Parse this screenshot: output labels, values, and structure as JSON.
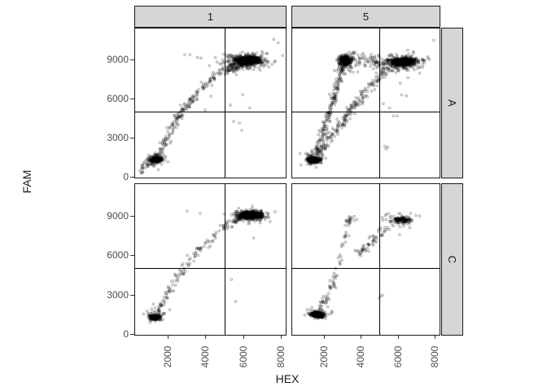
{
  "chart_data": {
    "type": "scatter",
    "xlabel": "HEX",
    "ylabel": "FAM",
    "x_domain": [
      230,
      8300
    ],
    "y_domain": [
      -100,
      11450
    ],
    "x_ticks": [
      {
        "value": 2000,
        "label": "2000"
      },
      {
        "value": 4000,
        "label": "4000"
      },
      {
        "value": 6000,
        "label": "6000"
      },
      {
        "value": 8000,
        "label": "8000"
      }
    ],
    "y_ticks": [
      {
        "value": 0,
        "label": "0"
      },
      {
        "value": 3000,
        "label": "3000"
      },
      {
        "value": 6000,
        "label": "6000"
      },
      {
        "value": 9000,
        "label": "9000"
      }
    ],
    "thresholds": {
      "x": 5000,
      "y": 5000
    },
    "grid": "off",
    "legend": "none",
    "facets": {
      "col_labels": [
        "1",
        "5"
      ],
      "row_labels": [
        "A",
        "C"
      ]
    },
    "point_style": {
      "radius": 1.4,
      "stroke": "rgba(0,0,0,0.30)",
      "fill": "rgba(0,0,0,0.07)"
    },
    "panels": [
      {
        "id": "col1-rowA",
        "col": "1",
        "row": "A",
        "clusters": [
          {
            "cx": 1390,
            "cy": 1330,
            "sx": 130,
            "sy": 85,
            "n": 320
          },
          {
            "cx": 1420,
            "cy": 1430,
            "sx": 300,
            "sy": 260,
            "n": 70
          },
          {
            "cx": 6280,
            "cy": 8950,
            "sx": 320,
            "sy": 150,
            "n": 650
          },
          {
            "cx": 6150,
            "cy": 8900,
            "sx": 620,
            "sy": 300,
            "n": 220
          }
        ],
        "trails": [
          {
            "path": [
              [
                560,
                560
              ],
              [
                1100,
                1050
              ],
              [
                1500,
                1600
              ],
              [
                1900,
                2700
              ],
              [
                2300,
                3900
              ],
              [
                2700,
                4900
              ],
              [
                3100,
                5700
              ],
              [
                3600,
                6500
              ],
              [
                4100,
                7200
              ],
              [
                4600,
                7800
              ],
              [
                5100,
                8300
              ],
              [
                5600,
                8600
              ]
            ],
            "n": 240,
            "jx": 100,
            "jy": 170
          },
          {
            "path": [
              [
                5300,
                8200
              ],
              [
                5950,
                8750
              ]
            ],
            "n": 60,
            "jx": 150,
            "jy": 200
          }
        ],
        "points": [
          [
            7620,
            10560
          ],
          [
            7860,
            10300
          ],
          [
            2905,
            9390
          ],
          [
            3180,
            9390
          ],
          [
            3580,
            9180
          ],
          [
            3770,
            9120
          ],
          [
            5495,
            4270
          ],
          [
            5797,
            4145
          ],
          [
            5926,
            3583
          ],
          [
            5320,
            5520
          ],
          [
            5970,
            6330
          ],
          [
            6350,
            5300
          ],
          [
            4290,
            6200
          ],
          [
            3990,
            5140
          ],
          [
            6900,
            8200
          ],
          [
            7250,
            9480
          ]
        ]
      },
      {
        "id": "col5-rowA",
        "col": "5",
        "row": "A",
        "clusters": [
          {
            "cx": 1430,
            "cy": 1320,
            "sx": 150,
            "sy": 95,
            "n": 330
          },
          {
            "cx": 1480,
            "cy": 1450,
            "sx": 300,
            "sy": 280,
            "n": 70
          },
          {
            "cx": 3170,
            "cy": 8940,
            "sx": 160,
            "sy": 190,
            "n": 270
          },
          {
            "cx": 3120,
            "cy": 8650,
            "sx": 280,
            "sy": 400,
            "n": 70
          },
          {
            "cx": 6280,
            "cy": 8830,
            "sx": 330,
            "sy": 150,
            "n": 520
          },
          {
            "cx": 6150,
            "cy": 8800,
            "sx": 650,
            "sy": 300,
            "n": 230
          }
        ],
        "trails": [
          {
            "path": [
              [
                1600,
                1900
              ],
              [
                1750,
                2600
              ],
              [
                1950,
                3500
              ],
              [
                2150,
                4400
              ],
              [
                2350,
                5300
              ],
              [
                2550,
                6200
              ],
              [
                2750,
                7100
              ],
              [
                2950,
                8000
              ],
              [
                3050,
                8500
              ]
            ],
            "n": 170,
            "jx": 110,
            "jy": 180
          },
          {
            "path": [
              [
                1700,
                1800
              ],
              [
                2100,
                2600
              ],
              [
                2600,
                3600
              ],
              [
                3100,
                4500
              ],
              [
                3600,
                5400
              ],
              [
                4100,
                6300
              ],
              [
                4600,
                7100
              ],
              [
                5100,
                7800
              ],
              [
                5600,
                8300
              ]
            ],
            "n": 210,
            "jx": 140,
            "jy": 190
          },
          {
            "path": [
              [
                3500,
                8900
              ],
              [
                4300,
                8950
              ],
              [
                5100,
                8700
              ]
            ],
            "n": 45,
            "jx": 150,
            "jy": 250
          }
        ],
        "points": [
          [
            7940,
            10480
          ],
          [
            5550,
            5300
          ],
          [
            5750,
            4700
          ],
          [
            5960,
            4690
          ],
          [
            5300,
            2350
          ],
          [
            5450,
            2300
          ],
          [
            5360,
            2160
          ],
          [
            6200,
            6300
          ],
          [
            6460,
            6230
          ],
          [
            6130,
            7200
          ],
          [
            6550,
            7620
          ],
          [
            7060,
            8330
          ],
          [
            5210,
            5630
          ],
          [
            4120,
            9480
          ],
          [
            3690,
            9560
          ]
        ]
      },
      {
        "id": "col1-rowC",
        "col": "1",
        "row": "C",
        "clusters": [
          {
            "cx": 1320,
            "cy": 1290,
            "sx": 120,
            "sy": 85,
            "n": 300
          },
          {
            "cx": 1360,
            "cy": 1390,
            "sx": 260,
            "sy": 220,
            "n": 50
          },
          {
            "cx": 6420,
            "cy": 9030,
            "sx": 280,
            "sy": 135,
            "n": 620
          },
          {
            "cx": 6330,
            "cy": 9000,
            "sx": 520,
            "sy": 240,
            "n": 150
          }
        ],
        "trails": [
          {
            "path": [
              [
                1450,
                1700
              ],
              [
                1800,
                2500
              ],
              [
                2200,
                3500
              ],
              [
                2600,
                4400
              ],
              [
                3000,
                5300
              ],
              [
                3500,
                6200
              ],
              [
                4000,
                6900
              ],
              [
                4500,
                7600
              ],
              [
                5000,
                8100
              ],
              [
                5500,
                8500
              ]
            ],
            "n": 120,
            "jx": 110,
            "jy": 170
          },
          {
            "path": [
              [
                5500,
                8500
              ],
              [
                6050,
                8950
              ]
            ],
            "n": 30,
            "jx": 140,
            "jy": 160
          }
        ],
        "points": [
          [
            3035,
            9350
          ],
          [
            3725,
            9165
          ],
          [
            5380,
            4160
          ],
          [
            5600,
            2490
          ],
          [
            6550,
            7310
          ]
        ]
      },
      {
        "id": "col5-rowC",
        "col": "5",
        "row": "C",
        "clusters": [
          {
            "cx": 1640,
            "cy": 1490,
            "sx": 160,
            "sy": 100,
            "n": 340
          },
          {
            "cx": 1680,
            "cy": 1580,
            "sx": 300,
            "sy": 220,
            "n": 60
          },
          {
            "cx": 3380,
            "cy": 8630,
            "sx": 140,
            "sy": 160,
            "n": 22
          },
          {
            "cx": 6180,
            "cy": 8690,
            "sx": 260,
            "sy": 130,
            "n": 110
          },
          {
            "cx": 6100,
            "cy": 8650,
            "sx": 480,
            "sy": 240,
            "n": 45
          }
        ],
        "trails": [
          {
            "path": [
              [
                1800,
                1900
              ],
              [
                2000,
                2500
              ],
              [
                2250,
                3200
              ],
              [
                2500,
                3900
              ],
              [
                2750,
                4600
              ]
            ],
            "n": 45,
            "jx": 110,
            "jy": 160
          },
          {
            "path": [
              [
                2850,
                5300
              ],
              [
                3000,
                6300
              ],
              [
                3120,
                7200
              ],
              [
                3250,
                8000
              ]
            ],
            "n": 18,
            "jx": 90,
            "jy": 150
          },
          {
            "path": [
              [
                3700,
                5900
              ],
              [
                4100,
                6500
              ],
              [
                4600,
                7100
              ],
              [
                5100,
                7700
              ],
              [
                5600,
                8200
              ]
            ],
            "n": 60,
            "jx": 130,
            "jy": 170
          }
        ],
        "points": [
          [
            5060,
            2900
          ],
          [
            5170,
            2960
          ],
          [
            4990,
            2760
          ],
          [
            6090,
            7560
          ],
          [
            2620,
            4980
          ],
          [
            4420,
            6300
          ],
          [
            6640,
            8080
          ]
        ]
      }
    ]
  },
  "style": {
    "strip_bg": "#d6d6d6",
    "border_color": "#1a1a1a",
    "tick_label_color": "#4d4d4d",
    "threshold_line_color": "#000000"
  }
}
